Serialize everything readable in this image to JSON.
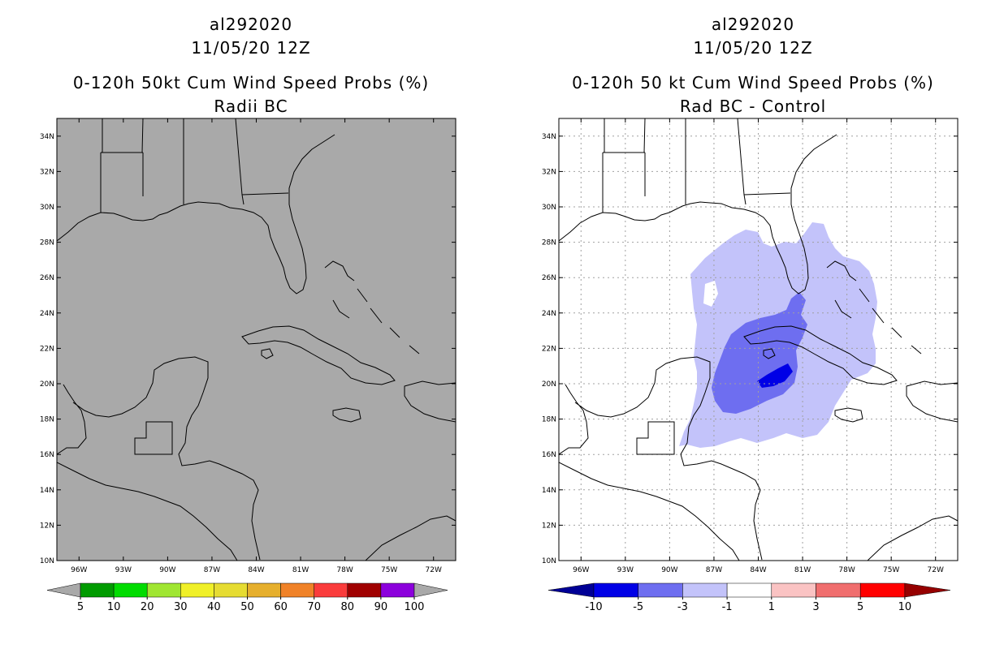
{
  "left_panel": {
    "storm_id": "al292020",
    "datetime": "11/05/20 12Z",
    "title": "0-120h 50kt Cum Wind Speed Probs (%)",
    "subtitle": "Radii BC",
    "background_color": "#a9a9a9",
    "colorbar": {
      "colors": [
        "#009b00",
        "#00dc00",
        "#a0e632",
        "#f0f028",
        "#e6dc32",
        "#e6af2d",
        "#f08228",
        "#fa3c3c",
        "#a00000",
        "#8c00dc"
      ],
      "labels": [
        "5",
        "10",
        "20",
        "30",
        "40",
        "50",
        "60",
        "70",
        "80",
        "90",
        "100"
      ],
      "end_color": "#a9a9a9"
    }
  },
  "right_panel": {
    "storm_id": "al292020",
    "datetime": "11/05/20 12Z",
    "title": "0-120h 50 kt Cum Wind Speed Probs (%)",
    "subtitle": "Rad BC - Control",
    "background_color": "#ffffff",
    "colorbar": {
      "colors": [
        "#0000e6",
        "#6e6ef0",
        "#c3c3fa",
        "#ffffff",
        "#fac3c3",
        "#f06e6e",
        "#ff0000"
      ],
      "labels": [
        "-10",
        "-5",
        "-3",
        "-1",
        "1",
        "3",
        "5",
        "10"
      ],
      "low_end_color": "#000096",
      "high_end_color": "#960000"
    }
  },
  "map": {
    "lat_labels": [
      "34N",
      "32N",
      "30N",
      "28N",
      "26N",
      "24N",
      "22N",
      "20N",
      "18N",
      "16N",
      "14N",
      "12N",
      "10N"
    ],
    "lon_labels": [
      "96W",
      "93W",
      "90W",
      "87W",
      "84W",
      "81W",
      "78W",
      "75W",
      "72W"
    ],
    "lat_range": [
      10,
      35
    ],
    "lon_range": [
      -97.5,
      -70.5
    ]
  }
}
